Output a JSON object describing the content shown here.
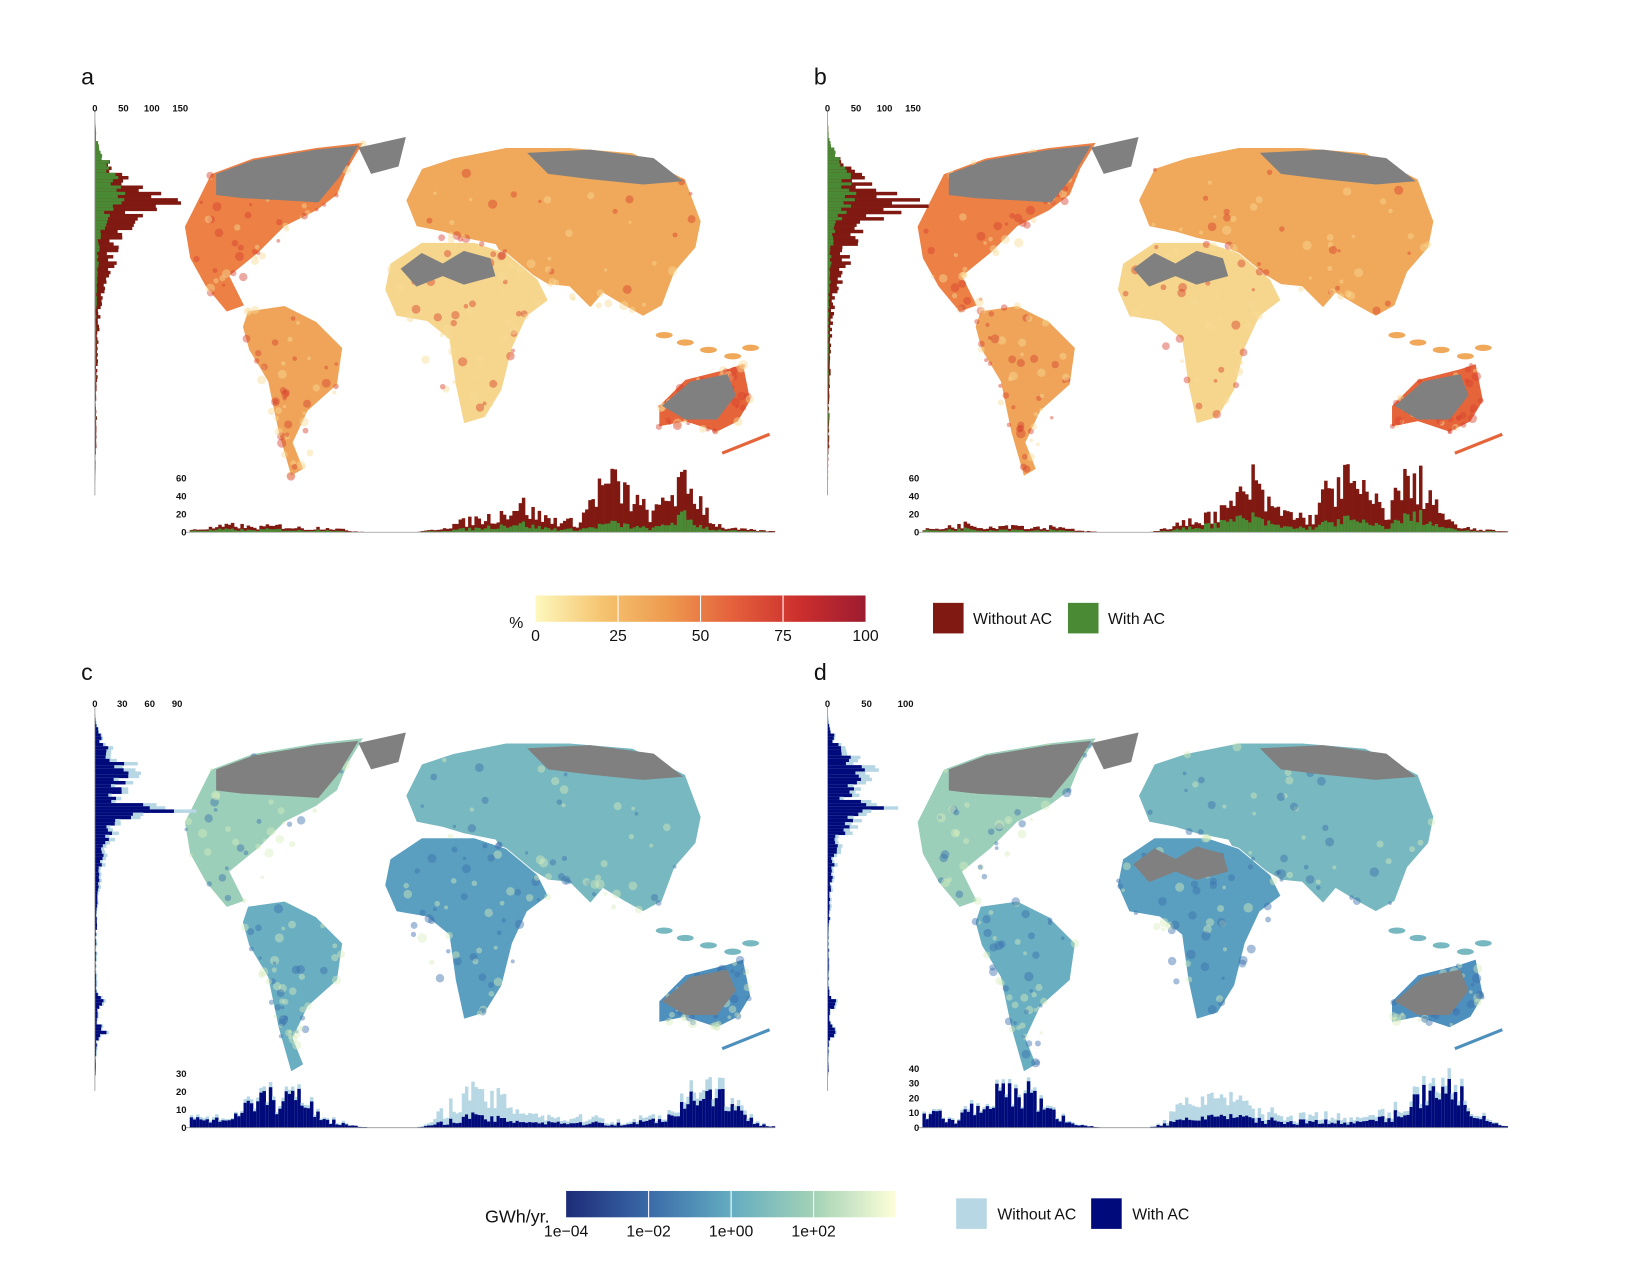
{
  "panels": [
    {
      "label": "a",
      "side_ticks": [
        "0",
        "50",
        "100",
        "150"
      ],
      "bottom_ticks": [
        "0",
        "20",
        "40",
        "60"
      ],
      "palette": "heat"
    },
    {
      "label": "b",
      "side_ticks": [
        "0",
        "50",
        "100",
        "150"
      ],
      "bottom_ticks": [
        "0",
        "20",
        "40",
        "60"
      ],
      "palette": "heat"
    },
    {
      "label": "c",
      "side_ticks": [
        "0",
        "30",
        "60",
        "90"
      ],
      "bottom_ticks": [
        "0",
        "10",
        "20",
        "30"
      ],
      "palette": "blue"
    },
    {
      "label": "d",
      "side_ticks": [
        "0",
        "50",
        "100"
      ],
      "bottom_ticks": [
        "0",
        "10",
        "20",
        "30",
        "40"
      ],
      "palette": "blue"
    }
  ],
  "legend_top": {
    "unit": "%",
    "ticks": [
      "0",
      "25",
      "50",
      "75",
      "100"
    ],
    "gradient": [
      "#fef8bd",
      "#f5c470",
      "#ee9a4f",
      "#e4603c",
      "#cc2f2d",
      "#9d1c31"
    ],
    "items": [
      {
        "label": "Without AC",
        "color": "#7f1911"
      },
      {
        "label": "With AC",
        "color": "#4a8a35"
      }
    ]
  },
  "legend_bottom": {
    "unit": "GWh/yr.",
    "ticks": [
      "1e−04",
      "1e−02",
      "1e+00",
      "1e+02"
    ],
    "gradient": [
      "#1d2b78",
      "#3a6aa8",
      "#63acc1",
      "#a3d2b6",
      "#feffd9"
    ],
    "items": [
      {
        "label": "Without AC",
        "color": "#b7d7e4"
      },
      {
        "label": "With AC",
        "color": "#000a7a"
      }
    ]
  },
  "chart_data": [
    {
      "panel": "a",
      "type": "bar",
      "side_hist": {
        "axis": "latitude",
        "max": 150,
        "without_ac": [
          0,
          1,
          2,
          5,
          12,
          25,
          40,
          60,
          90,
          120,
          80,
          60,
          45,
          40,
          32,
          28,
          22,
          18,
          14,
          10,
          8,
          7,
          6,
          5,
          4,
          5,
          3,
          4,
          3,
          2,
          2,
          3,
          2,
          2,
          3,
          1,
          1,
          1,
          0,
          0
        ],
        "with_ac": [
          0,
          1,
          2,
          6,
          14,
          22,
          30,
          35,
          40,
          35,
          25,
          18,
          10,
          8,
          6,
          5,
          4,
          4,
          3,
          3,
          2,
          2,
          2,
          2,
          2,
          2,
          1,
          2,
          1,
          1,
          1,
          2,
          1,
          1,
          1,
          1,
          0,
          0,
          0,
          0
        ]
      },
      "bottom_hist": {
        "axis": "longitude",
        "ylim": [
          0,
          60
        ],
        "without_ac": [
          3,
          4,
          6,
          8,
          5,
          6,
          7,
          5,
          4,
          6,
          3,
          1,
          0,
          0,
          0,
          0,
          2,
          6,
          10,
          14,
          16,
          22,
          32,
          20,
          14,
          12,
          10,
          42,
          55,
          45,
          30,
          18,
          45,
          50,
          40,
          10,
          4,
          3,
          2,
          1
        ],
        "with_ac": [
          2,
          2,
          3,
          3,
          2,
          3,
          3,
          2,
          2,
          3,
          1,
          0,
          0,
          0,
          0,
          0,
          1,
          2,
          3,
          4,
          6,
          8,
          10,
          6,
          4,
          3,
          3,
          6,
          10,
          8,
          5,
          4,
          10,
          18,
          8,
          3,
          2,
          1,
          1,
          0
        ]
      }
    },
    {
      "panel": "b",
      "type": "bar",
      "side_hist": {
        "axis": "latitude",
        "max": 150,
        "without_ac": [
          0,
          1,
          2,
          5,
          14,
          28,
          45,
          65,
          95,
          140,
          90,
          65,
          50,
          42,
          35,
          30,
          24,
          20,
          15,
          11,
          9,
          8,
          7,
          6,
          5,
          5,
          4,
          4,
          3,
          3,
          2,
          3,
          2,
          2,
          3,
          1,
          1,
          1,
          0,
          0
        ],
        "with_ac": [
          0,
          1,
          2,
          6,
          15,
          22,
          30,
          34,
          38,
          32,
          24,
          16,
          10,
          8,
          6,
          5,
          4,
          4,
          3,
          3,
          2,
          2,
          2,
          2,
          2,
          2,
          1,
          2,
          1,
          1,
          1,
          2,
          1,
          1,
          1,
          1,
          0,
          0,
          0,
          0
        ]
      },
      "bottom_hist": {
        "axis": "longitude",
        "ylim": [
          0,
          60
        ],
        "without_ac": [
          3,
          4,
          7,
          9,
          6,
          7,
          8,
          6,
          5,
          7,
          3,
          1,
          0,
          0,
          0,
          0,
          3,
          8,
          12,
          18,
          22,
          35,
          55,
          30,
          22,
          18,
          14,
          45,
          58,
          48,
          35,
          22,
          50,
          55,
          42,
          12,
          5,
          3,
          2,
          1
        ],
        "with_ac": [
          2,
          2,
          3,
          4,
          2,
          3,
          3,
          2,
          2,
          3,
          1,
          0,
          0,
          0,
          0,
          0,
          1,
          3,
          5,
          8,
          10,
          14,
          16,
          10,
          6,
          5,
          5,
          10,
          14,
          12,
          8,
          6,
          14,
          20,
          10,
          4,
          2,
          1,
          1,
          0
        ]
      }
    },
    {
      "panel": "c",
      "type": "bar",
      "side_hist": {
        "axis": "latitude",
        "max": 90,
        "without_ac": [
          0,
          2,
          5,
          10,
          20,
          30,
          45,
          35,
          30,
          25,
          90,
          30,
          25,
          20,
          15,
          10,
          8,
          6,
          5,
          4,
          3,
          3,
          2,
          2,
          2,
          2,
          2,
          2,
          2,
          3,
          10,
          4,
          3,
          12,
          3,
          2,
          1,
          1,
          0,
          0
        ],
        "with_ac": [
          0,
          1,
          4,
          8,
          14,
          20,
          32,
          28,
          24,
          20,
          70,
          24,
          18,
          14,
          10,
          7,
          5,
          4,
          3,
          3,
          2,
          2,
          2,
          1,
          1,
          1,
          1,
          1,
          1,
          2,
          8,
          3,
          2,
          10,
          2,
          1,
          1,
          1,
          0,
          0
        ]
      },
      "bottom_hist": {
        "axis": "longitude",
        "ylim": [
          0,
          30
        ],
        "without_ac": [
          6,
          8,
          4,
          10,
          14,
          18,
          16,
          20,
          14,
          6,
          3,
          1,
          0,
          0,
          0,
          0,
          2,
          10,
          16,
          18,
          16,
          14,
          10,
          8,
          6,
          5,
          5,
          6,
          4,
          3,
          5,
          6,
          8,
          16,
          26,
          24,
          20,
          8,
          3,
          1
        ],
        "with_ac": [
          5,
          6,
          3,
          9,
          12,
          16,
          14,
          18,
          12,
          5,
          2,
          1,
          0,
          0,
          0,
          0,
          1,
          3,
          5,
          6,
          5,
          4,
          4,
          3,
          3,
          3,
          2,
          3,
          2,
          2,
          3,
          4,
          6,
          12,
          20,
          18,
          16,
          6,
          2,
          1
        ]
      }
    },
    {
      "panel": "d",
      "type": "bar",
      "side_hist": {
        "axis": "latitude",
        "max": 100,
        "without_ac": [
          0,
          2,
          6,
          12,
          25,
          40,
          55,
          45,
          35,
          30,
          100,
          35,
          28,
          22,
          16,
          12,
          9,
          7,
          6,
          5,
          4,
          3,
          3,
          2,
          2,
          2,
          2,
          2,
          2,
          3,
          12,
          4,
          3,
          14,
          3,
          2,
          1,
          1,
          0,
          0
        ],
        "with_ac": [
          0,
          1,
          5,
          10,
          18,
          28,
          40,
          34,
          28,
          22,
          80,
          26,
          20,
          15,
          11,
          8,
          6,
          5,
          4,
          3,
          2,
          2,
          2,
          1,
          1,
          1,
          1,
          1,
          1,
          2,
          10,
          3,
          2,
          12,
          2,
          1,
          1,
          1,
          0,
          0
        ]
      },
      "bottom_hist": {
        "axis": "longitude",
        "ylim": [
          0,
          40
        ],
        "without_ac": [
          8,
          10,
          5,
          14,
          20,
          24,
          22,
          26,
          18,
          8,
          4,
          1,
          0,
          0,
          0,
          0,
          3,
          12,
          18,
          22,
          18,
          16,
          12,
          10,
          8,
          7,
          8,
          10,
          6,
          5,
          8,
          10,
          14,
          22,
          36,
          32,
          26,
          10,
          4,
          1
        ],
        "with_ac": [
          7,
          9,
          4,
          12,
          18,
          22,
          20,
          24,
          16,
          7,
          3,
          1,
          0,
          0,
          0,
          0,
          2,
          4,
          6,
          8,
          7,
          6,
          6,
          5,
          4,
          4,
          4,
          5,
          3,
          3,
          5,
          6,
          10,
          18,
          30,
          26,
          22,
          8,
          3,
          1
        ]
      }
    }
  ]
}
